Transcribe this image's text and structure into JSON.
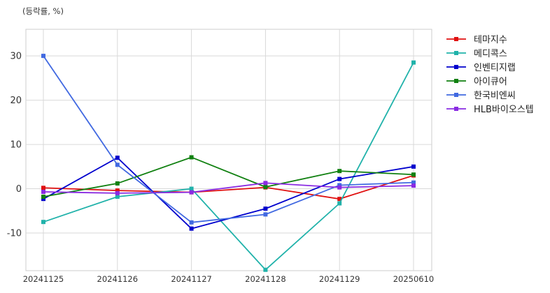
{
  "unit_label": "(등락률, %)",
  "chart_data": {
    "type": "line",
    "categories": [
      "20241125",
      "20241126",
      "20241127",
      "20241128",
      "20241129",
      "20250610"
    ],
    "ylim": [
      -18.5,
      36
    ],
    "yticks": [
      -10,
      0,
      10,
      20,
      30
    ],
    "grid": true,
    "legend_position": "right",
    "series": [
      {
        "name": "테마지수",
        "color": "#e01010",
        "values": [
          0.2,
          -0.4,
          -0.8,
          0.3,
          -2.3,
          3.0
        ]
      },
      {
        "name": "메디콕스",
        "color": "#20b2aa",
        "values": [
          -7.5,
          -1.8,
          0.0,
          -18.3,
          -3.3,
          28.5
        ]
      },
      {
        "name": "인벤티지랩",
        "color": "#0000cd",
        "values": [
          -2.3,
          7.0,
          -9.0,
          -4.5,
          2.2,
          5.0
        ]
      },
      {
        "name": "아이큐어",
        "color": "#108010",
        "values": [
          -1.8,
          1.2,
          7.1,
          0.4,
          4.0,
          3.2
        ]
      },
      {
        "name": "한국비엔씨",
        "color": "#4169e1",
        "values": [
          30.0,
          5.4,
          -7.6,
          -5.8,
          0.8,
          1.4
        ]
      },
      {
        "name": "HLB바이오스텝",
        "color": "#8a2be2",
        "values": [
          -0.7,
          -1.0,
          -0.8,
          1.3,
          0.3,
          0.7
        ]
      }
    ]
  }
}
